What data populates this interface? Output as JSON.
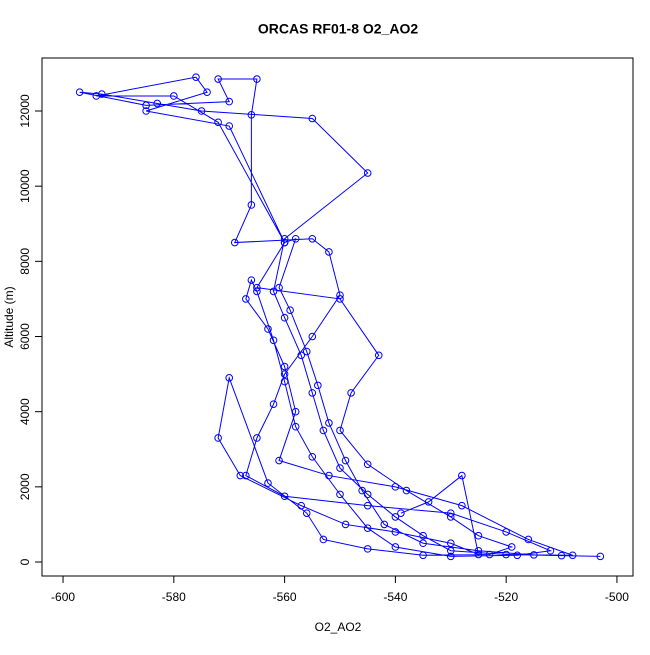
{
  "chart_data": {
    "type": "line",
    "title": "ORCAS RF01-8 O2_AO2",
    "x_label": "O2_AO2",
    "y_label": "Altitude (m)",
    "color": "#0000ff",
    "markers": "open-circle",
    "x": [
      -503,
      -510,
      -520,
      -530,
      -535,
      -540,
      -545,
      -550,
      -553,
      -555,
      -557,
      -560,
      -562,
      -560,
      -545,
      -555,
      -575,
      -583,
      -593,
      -597,
      -585,
      -570,
      -572,
      -565,
      -566,
      -566,
      -569,
      -555,
      -552,
      -550,
      -555,
      -560,
      -562,
      -565,
      -567,
      -560,
      -545,
      -530,
      -520,
      -512,
      -518,
      -530,
      -540,
      -545,
      -550,
      -555,
      -558,
      -560,
      -562,
      -565,
      -566,
      -567,
      -563,
      -560,
      -558,
      -561,
      -552,
      -540,
      -528,
      -516,
      -508,
      -515,
      -525,
      -535,
      -542,
      -546,
      -549,
      -552,
      -554,
      -556,
      -559,
      -561,
      -558,
      -560,
      -572,
      -580,
      -594,
      -576,
      -574,
      -585,
      -570,
      -560,
      -565,
      -550,
      -543,
      -548,
      -550,
      -545,
      -538,
      -530,
      -525,
      -519,
      -523,
      -535,
      -545,
      -553,
      -556,
      -563,
      -570,
      -572,
      -568,
      -557,
      -549,
      -540,
      -530,
      -525,
      -528,
      -534,
      -539
    ],
    "values": [
      150,
      170,
      200,
      300,
      700,
      1200,
      1800,
      2500,
      3500,
      4500,
      5500,
      6500,
      7200,
      8600,
      10350,
      11800,
      12000,
      12200,
      12450,
      12500,
      12150,
      12250,
      12850,
      12850,
      11900,
      9500,
      8500,
      8600,
      8250,
      7100,
      6000,
      5000,
      4200,
      3300,
      2300,
      1750,
      1500,
      1300,
      800,
      300,
      180,
      150,
      400,
      900,
      1800,
      2800,
      3600,
      4800,
      5900,
      7200,
      7500,
      7000,
      6200,
      5200,
      4000,
      2700,
      2300,
      2000,
      1500,
      600,
      180,
      190,
      300,
      500,
      1000,
      1900,
      2700,
      3700,
      4700,
      5600,
      6700,
      7300,
      8600,
      8500,
      11700,
      12400,
      12400,
      12900,
      12500,
      12000,
      11600,
      8500,
      7300,
      7000,
      5500,
      4500,
      3500,
      2600,
      1900,
      1200,
      700,
      400,
      200,
      180,
      350,
      600,
      1300,
      2100,
      4900,
      3300,
      2300,
      1500,
      1000,
      800,
      500,
      200,
      2300,
      1600,
      1300
    ],
    "xlim": [
      -603.8,
      -497.1
    ],
    "ylim": [
      -372,
      13410
    ],
    "xticks": [
      -600,
      -580,
      -560,
      -540,
      -520,
      -500
    ],
    "yticks": [
      0,
      2000,
      4000,
      6000,
      8000,
      10000,
      12000
    ]
  }
}
